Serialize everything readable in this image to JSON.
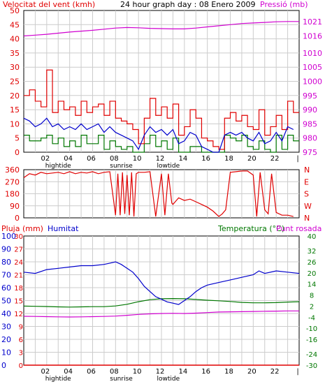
{
  "header": {
    "left_label": "Velocitat del vent (kmh)",
    "center_label": "24 hour graph day : 08 Enero 2009",
    "right_label": "Pressió (mb)"
  },
  "mid_header": {
    "left_label": "Pluja (mm)",
    "humidity_label": "Humitat",
    "right_label_temp": "Temperatura (°C)",
    "right_label_dew": "Punt rosada"
  },
  "x_axis": {
    "hour_ticks": [
      "02",
      "04",
      "06",
      "08",
      "10",
      "12",
      "14",
      "16",
      "18",
      "20",
      "22",
      "|"
    ],
    "events": [
      {
        "label": "hightide",
        "hour": 3.0
      },
      {
        "label": "sunrise",
        "hour": 8.5
      },
      {
        "label": "lowtide",
        "hour": 12.6
      }
    ]
  },
  "colors": {
    "wind_max": "#e00000",
    "wind_avg": "#0000cc",
    "wind_min": "#007700",
    "pressure": "#d000d0",
    "direction": "#e00000",
    "humidity": "#0000cc",
    "temperature": "#007700",
    "dewpoint": "#d000d0",
    "rain": "#e00000",
    "grid": "#cccccc",
    "axis_left_top": "#e00000",
    "axis_right_top": "#d000d0",
    "axis_rain": "#e00000",
    "axis_humidity": "#0000cc",
    "axis_temp": "#007700"
  },
  "chart_data": [
    {
      "type": "line",
      "panel": "wind-pressure",
      "y_left": {
        "label": "Velocitat del vent (kmh)",
        "ticks": [
          0,
          5,
          10,
          15,
          20,
          25,
          30,
          35,
          40,
          45,
          50
        ],
        "range": [
          0,
          50
        ]
      },
      "y_right": {
        "label": "Pressió (mb)",
        "ticks": [
          975,
          980,
          985,
          990,
          995,
          1000,
          1005,
          1010,
          1016,
          1021
        ],
        "range": [
          975,
          1025
        ]
      },
      "series": [
        {
          "name": "Velocitat del vent (kmh)",
          "x": [
            0,
            0.5,
            1,
            1.5,
            2,
            2.5,
            3,
            3.5,
            4,
            4.5,
            5,
            5.5,
            6,
            6.5,
            7,
            7.5,
            8,
            8.5,
            9,
            9.5,
            10,
            10.5,
            11,
            11.5,
            12,
            12.5,
            13,
            13.5,
            14,
            14.5,
            15,
            15.5,
            16,
            16.5,
            17,
            17.5,
            18,
            18.5,
            19,
            19.5,
            20,
            20.5,
            21,
            21.5,
            22,
            22.5,
            23,
            23.5
          ],
          "y": [
            20,
            22,
            18,
            16,
            29,
            14,
            18,
            15,
            16,
            13,
            18,
            14,
            16,
            17,
            13,
            18,
            12,
            11,
            10,
            8,
            3,
            12,
            19,
            13,
            16,
            12,
            17,
            6,
            9,
            15,
            12,
            5,
            4,
            2,
            1,
            12,
            14,
            11,
            13,
            9,
            8,
            15,
            6,
            9,
            13,
            8,
            18,
            14
          ]
        },
        {
          "name": "",
          "x": [
            0,
            0.5,
            1,
            1.5,
            2,
            2.5,
            3,
            3.5,
            4,
            4.5,
            5,
            5.5,
            6,
            6.5,
            7,
            7.5,
            8,
            8.5,
            9,
            9.5,
            10,
            10.5,
            11,
            11.5,
            12,
            12.5,
            13,
            13.5,
            14,
            14.5,
            15,
            15.5,
            16,
            16.5,
            17,
            17.5,
            18,
            18.5,
            19,
            19.5,
            20,
            20.5,
            21,
            21.5,
            22,
            22.5,
            23,
            23.5
          ],
          "y": [
            12,
            11,
            9,
            10,
            12,
            9,
            10,
            8,
            9,
            8,
            10,
            8,
            9,
            10,
            7,
            9,
            7,
            6,
            5,
            4,
            1,
            6,
            9,
            7,
            8,
            6,
            8,
            3,
            4,
            7,
            6,
            2,
            1,
            0,
            0,
            6,
            7,
            6,
            7,
            5,
            4,
            7,
            3,
            4,
            7,
            4,
            9,
            8
          ]
        },
        {
          "name": "",
          "x": [
            0,
            0.5,
            1,
            1.5,
            2,
            2.5,
            3,
            3.5,
            4,
            4.5,
            5,
            5.5,
            6,
            6.5,
            7,
            7.5,
            8,
            8.5,
            9,
            9.5,
            10,
            10.5,
            11,
            11.5,
            12,
            12.5,
            13,
            13.5,
            14,
            14.5,
            15,
            15.5,
            16,
            16.5,
            17,
            17.5,
            18,
            18.5,
            19,
            19.5,
            20,
            20.5,
            21,
            21.5,
            22,
            22.5,
            23,
            23.5
          ],
          "y": [
            6,
            4,
            4,
            5,
            6,
            3,
            5,
            2,
            4,
            2,
            6,
            3,
            3,
            6,
            1,
            4,
            2,
            1,
            2,
            0,
            0,
            3,
            6,
            2,
            4,
            1,
            5,
            0,
            0,
            2,
            2,
            0,
            0,
            0,
            0,
            6,
            5,
            4,
            6,
            2,
            1,
            4,
            1,
            0,
            6,
            1,
            6,
            4
          ]
        },
        {
          "name": "Pressió (mb)",
          "axis": "right",
          "x": [
            0,
            1,
            2,
            3,
            4,
            5,
            6,
            7,
            8,
            9,
            10,
            11,
            12,
            13,
            14,
            15,
            16,
            17,
            18,
            19,
            20,
            21,
            22,
            23,
            24
          ],
          "y": [
            1016.0,
            1016.3,
            1016.6,
            1017.0,
            1017.4,
            1017.7,
            1018.0,
            1018.4,
            1018.8,
            1019.0,
            1018.9,
            1018.7,
            1018.6,
            1018.5,
            1018.5,
            1018.8,
            1019.2,
            1019.6,
            1020.0,
            1020.4,
            1020.6,
            1020.8,
            1021.0,
            1021.1,
            1021.1
          ]
        }
      ]
    },
    {
      "type": "line",
      "panel": "wind-direction",
      "y_left": {
        "ticks": [
          0,
          90,
          180,
          270,
          360
        ],
        "range": [
          0,
          360
        ]
      },
      "y_right": {
        "ticks": [
          "N",
          "W",
          "S",
          "E",
          "N"
        ]
      },
      "series": [
        {
          "name": "",
          "x": [
            0,
            0.5,
            1,
            1.5,
            2,
            2.5,
            3,
            3.5,
            4,
            4.5,
            5,
            5.5,
            6,
            6.5,
            7,
            7.5,
            8,
            8.2,
            8.4,
            8.6,
            8.8,
            9.0,
            9.2,
            9.4,
            9.6,
            9.8,
            10,
            10.5,
            11,
            11.5,
            12,
            12.3,
            12.6,
            12.9,
            13,
            13.5,
            14,
            14.5,
            15,
            15.5,
            16,
            16.5,
            17,
            17.3,
            17.6,
            18,
            18.5,
            19,
            19.5,
            20,
            20.3,
            20.6,
            21,
            21.3,
            21.6,
            22,
            22.5,
            23,
            23.5
          ],
          "y": [
            300,
            330,
            320,
            340,
            330,
            335,
            340,
            330,
            345,
            330,
            340,
            335,
            345,
            330,
            340,
            345,
            20,
            330,
            20,
            340,
            30,
            320,
            20,
            340,
            10,
            330,
            340,
            340,
            345,
            10,
            330,
            20,
            330,
            110,
            100,
            150,
            130,
            140,
            120,
            100,
            80,
            50,
            10,
            30,
            60,
            340,
            345,
            350,
            350,
            320,
            10,
            340,
            60,
            30,
            330,
            40,
            20,
            20,
            10
          ]
        }
      ]
    },
    {
      "type": "line",
      "panel": "humidity-temperature",
      "y_left_rain": {
        "label": "Pluja (mm)",
        "ticks": [
          0,
          3,
          6,
          9,
          12,
          15,
          18,
          21,
          24,
          27,
          30
        ],
        "range": [
          0,
          30
        ]
      },
      "y_left_humidity": {
        "label": "Humitat",
        "ticks": [
          0,
          10,
          20,
          30,
          40,
          50,
          60,
          70,
          80,
          90,
          100
        ],
        "range": [
          0,
          100
        ]
      },
      "y_right": {
        "label": "Temperatura (°C)",
        "ticks": [
          -30,
          -24,
          -16,
          -10,
          -4,
          2,
          8,
          14,
          20,
          26,
          32,
          40
        ],
        "range": [
          -30,
          40
        ]
      },
      "series": [
        {
          "name": "Humitat",
          "axis": "humidity",
          "x": [
            0,
            1,
            2,
            3,
            4,
            5,
            6,
            7,
            7.5,
            8,
            8.5,
            9,
            9.5,
            10,
            10.5,
            11,
            11.5,
            12,
            12.5,
            13,
            13.5,
            14,
            14.5,
            15,
            15.5,
            16,
            17,
            18,
            19,
            20,
            20.5,
            21,
            22,
            23,
            24
          ],
          "y": [
            72,
            71,
            74,
            75,
            76,
            77,
            77,
            78,
            79,
            80,
            78,
            75,
            72,
            67,
            61,
            57,
            53,
            51,
            49,
            48,
            47,
            50,
            53,
            57,
            60,
            62,
            64,
            66,
            68,
            70,
            73,
            71,
            73,
            72,
            71
          ]
        },
        {
          "name": "Temperatura (°C)",
          "axis": "right",
          "x": [
            0,
            1,
            2,
            3,
            4,
            5,
            6,
            7,
            8,
            9,
            10,
            11,
            12,
            13,
            14,
            15,
            16,
            17,
            18,
            19,
            20,
            21,
            22,
            23,
            24
          ],
          "y": [
            2.0,
            1.9,
            1.8,
            1.6,
            1.5,
            1.6,
            1.7,
            1.7,
            2.1,
            3.0,
            4.4,
            5.5,
            6.0,
            6.1,
            6.0,
            5.6,
            5.2,
            4.9,
            4.5,
            4.0,
            3.8,
            3.8,
            3.9,
            4.2,
            4.4
          ]
        },
        {
          "name": "Punt rosada",
          "axis": "right",
          "x": [
            0,
            1,
            2,
            3,
            4,
            5,
            6,
            7,
            8,
            9,
            10,
            11,
            12,
            13,
            14,
            15,
            16,
            17,
            18,
            19,
            20,
            21,
            22,
            23,
            24
          ],
          "y": [
            -3.5,
            -3.6,
            -3.7,
            -3.8,
            -3.9,
            -3.8,
            -3.7,
            -3.6,
            -3.4,
            -3.0,
            -2.5,
            -2.2,
            -2.0,
            -1.9,
            -2.0,
            -1.8,
            -1.5,
            -1.2,
            -1.1,
            -1.0,
            -0.9,
            -0.8,
            -0.7,
            -0.6,
            -0.6
          ]
        },
        {
          "name": "Pluja (mm)",
          "axis": "rain",
          "x": [
            0,
            24
          ],
          "y": [
            0,
            0
          ]
        }
      ]
    }
  ]
}
